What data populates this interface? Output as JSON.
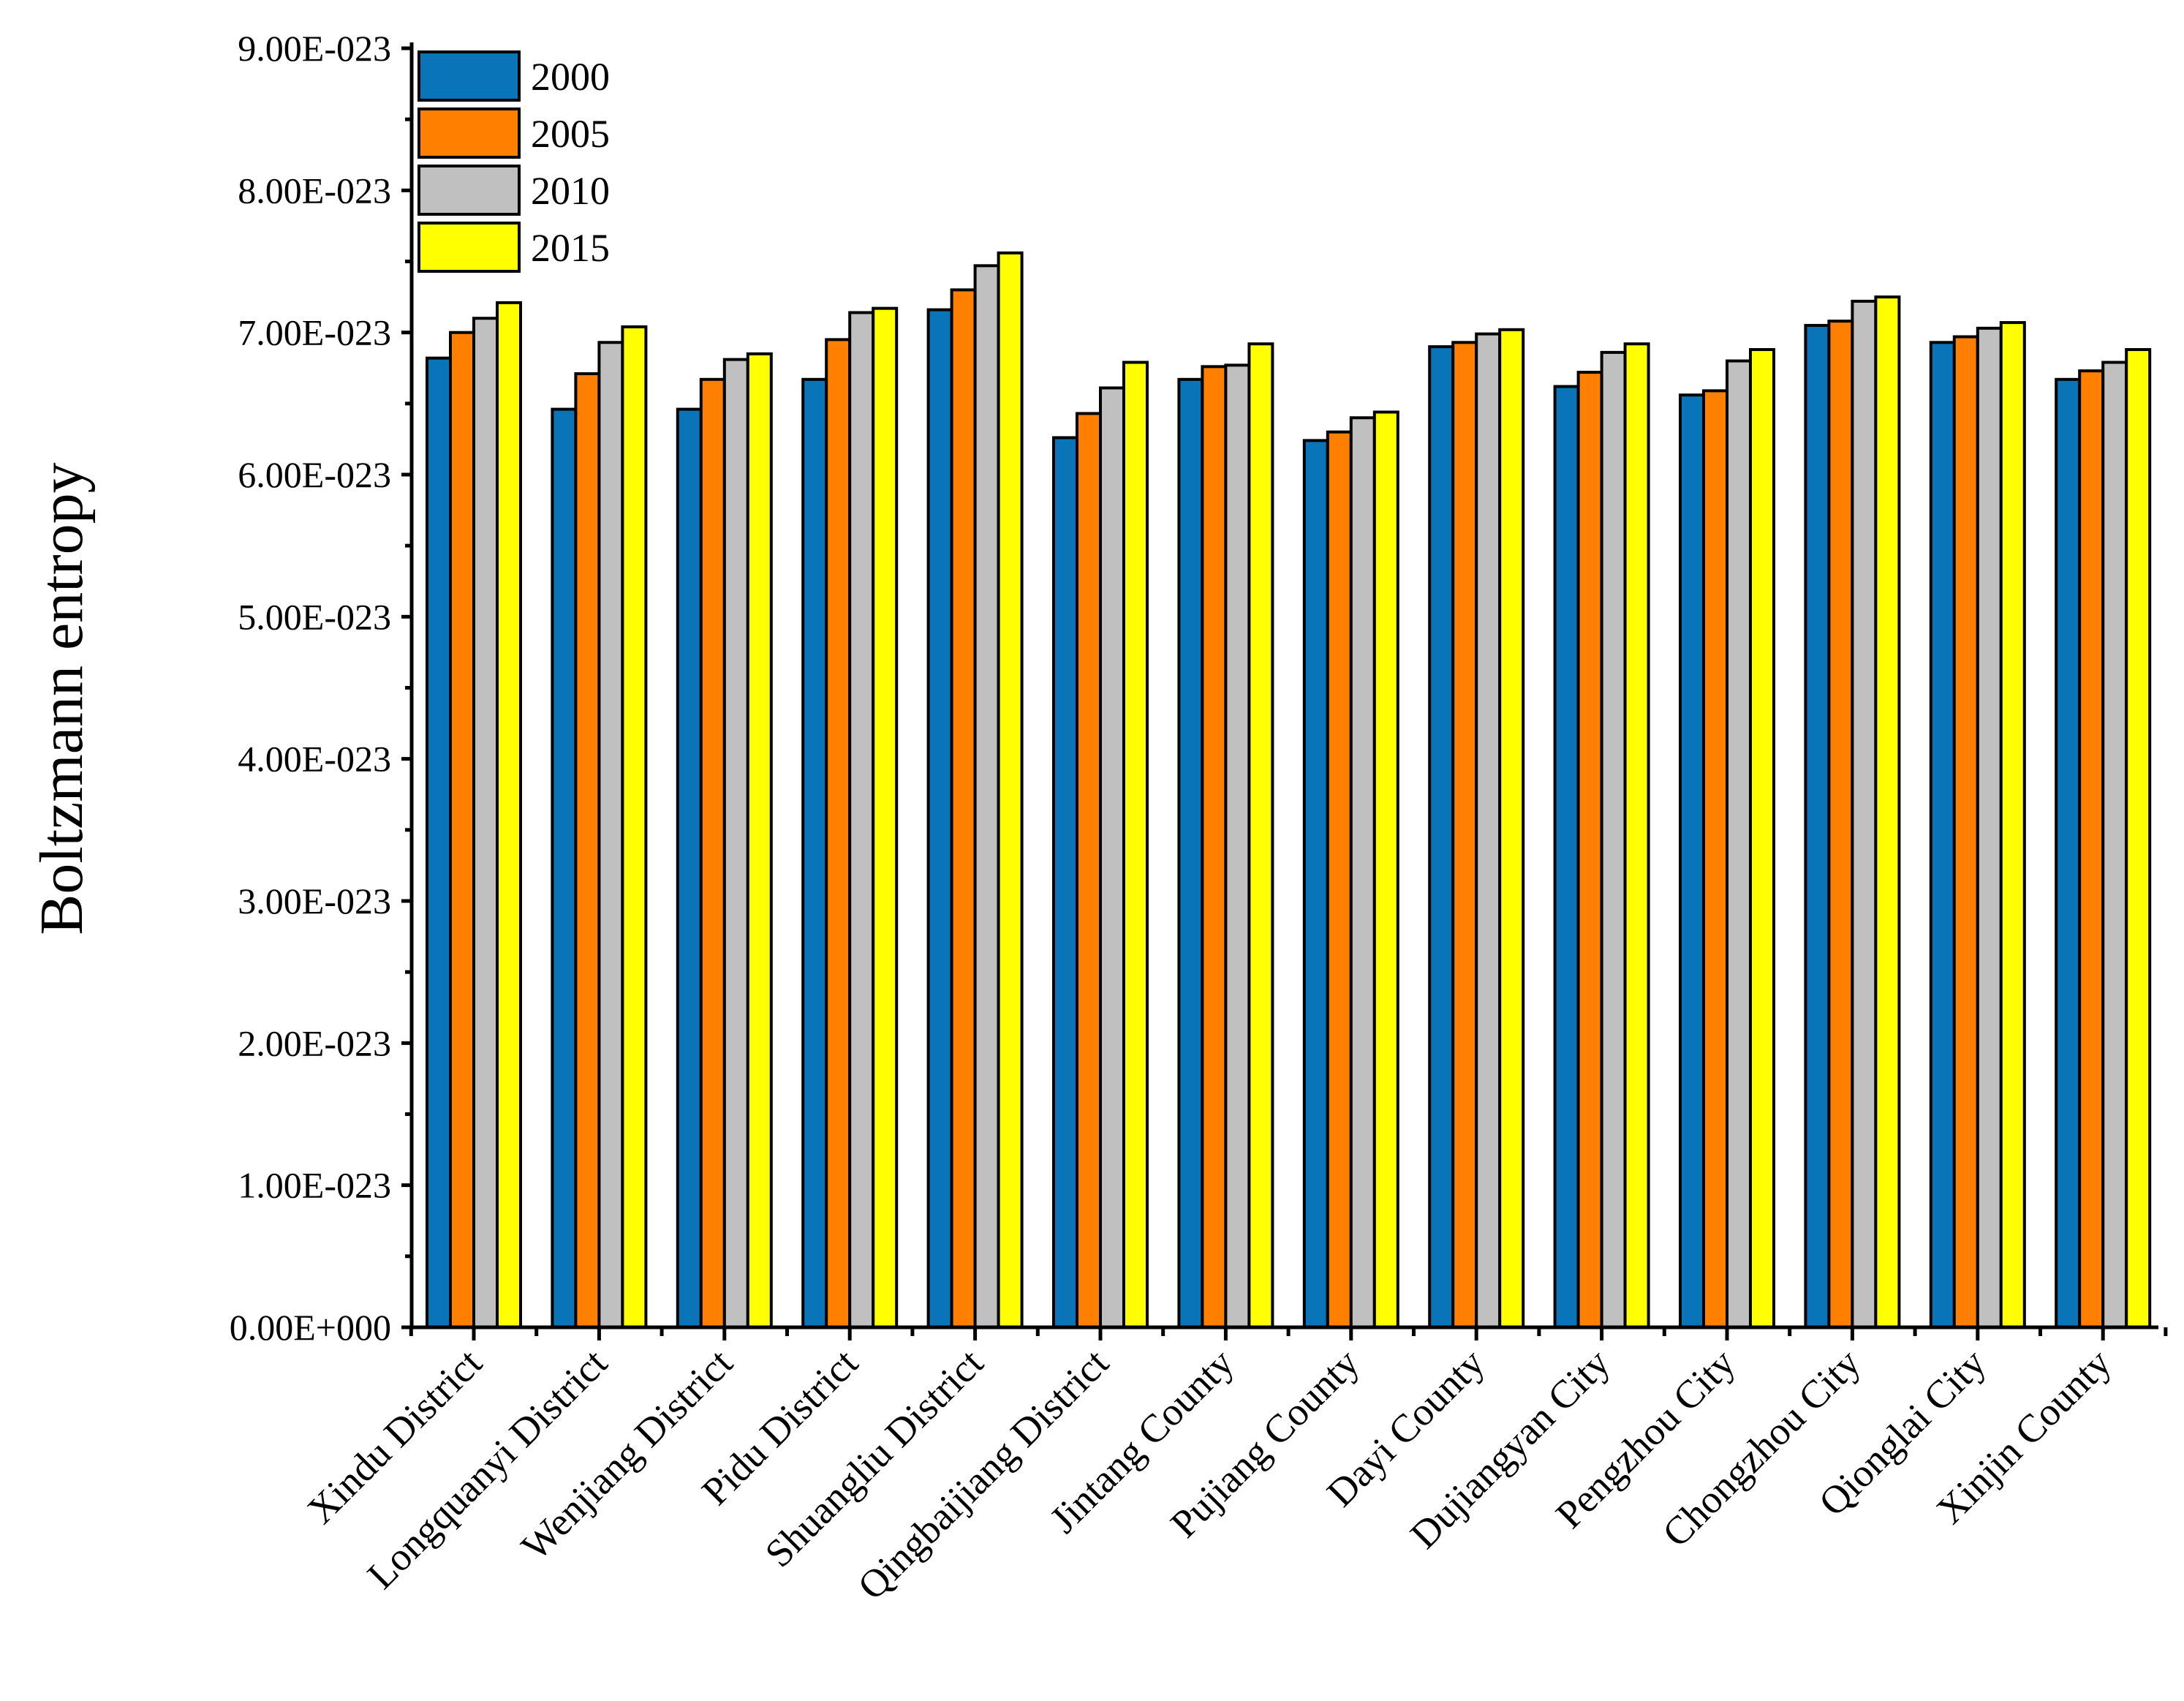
{
  "chart_data": {
    "type": "bar",
    "title": "",
    "xlabel": "",
    "ylabel": "Boltzmann entropy",
    "ylim": [
      0,
      9e-23
    ],
    "y_ticks": [
      {
        "value": 0,
        "label": "0.00E+000"
      },
      {
        "value": 1e-23,
        "label": "1.00E-023"
      },
      {
        "value": 2e-23,
        "label": "2.00E-023"
      },
      {
        "value": 3e-23,
        "label": "3.00E-023"
      },
      {
        "value": 4e-23,
        "label": "4.00E-023"
      },
      {
        "value": 5e-23,
        "label": "5.00E-023"
      },
      {
        "value": 6e-23,
        "label": "6.00E-023"
      },
      {
        "value": 7e-23,
        "label": "7.00E-023"
      },
      {
        "value": 8e-23,
        "label": "8.00E-023"
      },
      {
        "value": 9e-23,
        "label": "9.00E-023"
      }
    ],
    "grid": false,
    "legend_position": "top-left",
    "categories": [
      "Xindu District",
      "Longquanyi District",
      "Wenjiang District",
      "Pidu District",
      "Shuangliu District",
      "Qingbaijiang District",
      "Jintang County",
      "Pujiang County",
      "Dayi County",
      "Dujiangyan City",
      "Pengzhou City",
      "Chongzhou City",
      "Qionglai City",
      "Xinjin County"
    ],
    "series": [
      {
        "name": "2000",
        "color": "#0A74B8",
        "values": [
          6.82e-23,
          6.46e-23,
          6.46e-23,
          6.67e-23,
          7.16e-23,
          6.26e-23,
          6.67e-23,
          6.24e-23,
          6.9e-23,
          6.62e-23,
          6.56e-23,
          7.05e-23,
          6.93e-23,
          6.67e-23
        ]
      },
      {
        "name": "2005",
        "color": "#FF7F00",
        "values": [
          7e-23,
          6.71e-23,
          6.67e-23,
          6.95e-23,
          7.3e-23,
          6.43e-23,
          6.76e-23,
          6.3e-23,
          6.93e-23,
          6.72e-23,
          6.59e-23,
          7.08e-23,
          6.97e-23,
          6.73e-23
        ]
      },
      {
        "name": "2010",
        "color": "#C0C0C0",
        "values": [
          7.1e-23,
          6.93e-23,
          6.81e-23,
          7.14e-23,
          7.47e-23,
          6.61e-23,
          6.77e-23,
          6.4e-23,
          6.99e-23,
          6.86e-23,
          6.8e-23,
          7.22e-23,
          7.03e-23,
          6.79e-23
        ]
      },
      {
        "name": "2015",
        "color": "#FFFF00",
        "values": [
          7.21e-23,
          7.04e-23,
          6.85e-23,
          7.17e-23,
          7.56e-23,
          6.79e-23,
          6.92e-23,
          6.44e-23,
          7.02e-23,
          6.92e-23,
          6.88e-23,
          7.25e-23,
          7.07e-23,
          6.88e-23
        ]
      }
    ]
  }
}
